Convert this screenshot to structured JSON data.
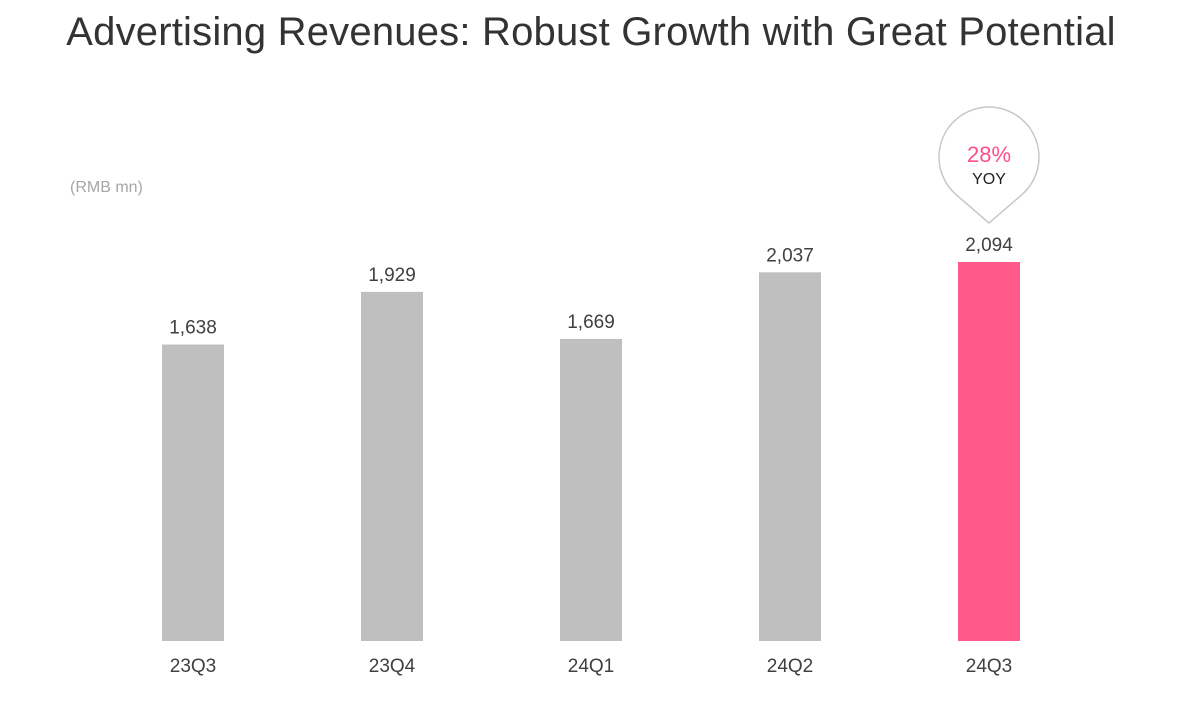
{
  "title": "Advertising Revenues:  Robust Growth with Great Potential",
  "unit_label": "(RMB mn)",
  "colors": {
    "bar_default": "#bfbfbf",
    "bar_highlight": "#ff5a8a",
    "callout_percent": "#ff4f86",
    "callout_border": "#c8c8c8"
  },
  "callout": {
    "percent": "28%",
    "label": "YOY",
    "category": "24Q3"
  },
  "chart_data": {
    "type": "bar",
    "categories": [
      "23Q3",
      "23Q4",
      "24Q1",
      "24Q2",
      "24Q3"
    ],
    "values": [
      1638,
      1929,
      1669,
      2037,
      2094
    ],
    "value_labels": [
      "1,638",
      "1,929",
      "1,669",
      "2,037",
      "2,094"
    ],
    "highlight": "24Q3",
    "title": "Advertising Revenues:  Robust Growth with Great Potential",
    "ylabel": "(RMB mn)",
    "ylim": [
      0,
      2094
    ],
    "grid": false
  }
}
